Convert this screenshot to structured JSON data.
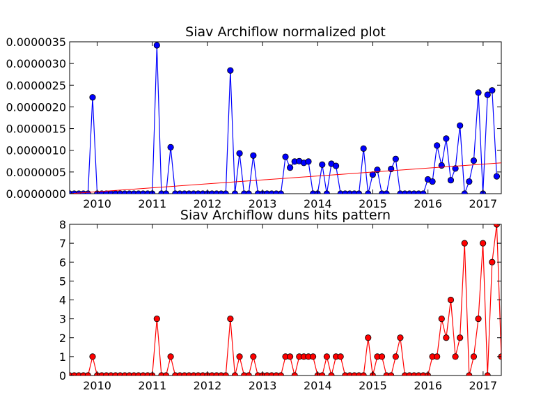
{
  "chart_data": [
    {
      "type": "line",
      "title": "Siav Archiflow normalized plot",
      "xlabel": "",
      "ylabel": "",
      "x_start": 2009.5,
      "x_step": 0.0833,
      "xlim": [
        2009.5,
        2017.33
      ],
      "ylim": [
        0,
        3.5e-06
      ],
      "xticks": [
        "2010",
        "2011",
        "2012",
        "2013",
        "2014",
        "2015",
        "2016",
        "2017"
      ],
      "yticks": [
        "0.0000000",
        "0.0000005",
        "0.0000010",
        "0.0000015",
        "0.0000020",
        "0.0000025",
        "0.0000030",
        "0.0000035"
      ],
      "grid": false,
      "series": [
        {
          "color": "#0000ff",
          "marker": "circle",
          "values": [
            0,
            0,
            0,
            0,
            0,
            2.22e-06,
            0,
            0,
            0,
            0,
            0,
            0,
            0,
            0,
            0,
            0,
            0,
            0,
            0,
            3.42e-06,
            0,
            0,
            1.07e-06,
            0,
            0,
            0,
            0,
            0,
            0,
            0,
            0,
            0,
            0,
            0,
            0,
            2.84e-06,
            0,
            9.3e-07,
            0,
            0,
            8.8e-07,
            0,
            0,
            0,
            0,
            0,
            0,
            8.5e-07,
            6e-07,
            7.4e-07,
            7.5e-07,
            7.1e-07,
            7.4e-07,
            0,
            0,
            6.7e-07,
            0,
            6.9e-07,
            6.4e-07,
            0,
            0,
            0,
            0,
            0,
            1.04e-06,
            0,
            4.4e-07,
            5.5e-07,
            0,
            0,
            5.7e-07,
            8e-07,
            0,
            0,
            0,
            0,
            0,
            0,
            3.3e-07,
            2.8e-07,
            1.11e-06,
            6.5e-07,
            1.27e-06,
            3.1e-07,
            5.8e-07,
            1.57e-06,
            0,
            2.8e-07,
            7.6e-07,
            2.33e-06,
            0,
            2.28e-06,
            2.38e-06,
            4e-07
          ]
        },
        {
          "color": "#ff0000",
          "marker": "none",
          "trend": true,
          "values_at_xlim": [
            0,
            7.1e-07
          ]
        }
      ]
    },
    {
      "type": "line",
      "title": "Siav Archiflow duns hits pattern",
      "xlabel": "",
      "ylabel": "",
      "x_start": 2009.5,
      "x_step": 0.0833,
      "xlim": [
        2009.5,
        2017.33
      ],
      "ylim": [
        0,
        8
      ],
      "xticks": [
        "2010",
        "2011",
        "2012",
        "2013",
        "2014",
        "2015",
        "2016",
        "2017"
      ],
      "yticks": [
        "0",
        "1",
        "2",
        "3",
        "4",
        "5",
        "6",
        "7",
        "8"
      ],
      "grid": false,
      "series": [
        {
          "color": "#ff0000",
          "marker": "circle",
          "values": [
            0,
            0,
            0,
            0,
            0,
            1,
            0,
            0,
            0,
            0,
            0,
            0,
            0,
            0,
            0,
            0,
            0,
            0,
            0,
            3,
            0,
            0,
            1,
            0,
            0,
            0,
            0,
            0,
            0,
            0,
            0,
            0,
            0,
            0,
            0,
            3,
            0,
            1,
            0,
            0,
            1,
            0,
            0,
            0,
            0,
            0,
            0,
            1,
            1,
            0,
            1,
            1,
            1,
            1,
            0,
            0,
            1,
            0,
            1,
            1,
            0,
            0,
            0,
            0,
            0,
            2,
            0,
            1,
            1,
            0,
            0,
            1,
            2,
            0,
            0,
            0,
            0,
            0,
            0,
            1,
            1,
            3,
            2,
            4,
            1,
            2,
            7,
            0,
            1,
            3,
            7,
            0,
            6,
            8,
            1
          ]
        }
      ]
    }
  ]
}
